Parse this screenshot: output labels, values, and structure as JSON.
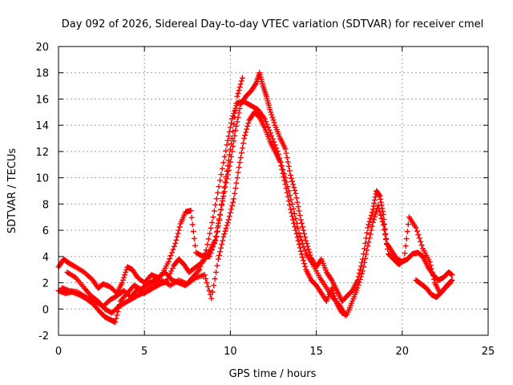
{
  "chart_data": {
    "type": "scatter",
    "title": "Day 092 of 2026, Sidereal Day-to-day VTEC variation (SDTVAR) for receiver cmel",
    "xlabel": "GPS time / hours",
    "ylabel": "SDTVAR / TECUs",
    "xlim": [
      0,
      25
    ],
    "ylim": [
      -2,
      20
    ],
    "x_ticks": [
      0,
      5,
      10,
      15,
      20,
      25
    ],
    "y_ticks": [
      -2,
      0,
      2,
      4,
      6,
      8,
      10,
      12,
      14,
      16,
      18,
      20
    ],
    "grid": true,
    "marker": "+",
    "series_color": "#ff0000",
    "series": [
      {
        "name": "sdtvar-track-a",
        "points": [
          [
            0.0,
            3.2
          ],
          [
            0.3,
            3.8
          ],
          [
            0.6,
            3.5
          ],
          [
            1.0,
            3.2
          ],
          [
            1.5,
            2.8
          ],
          [
            2.0,
            2.2
          ],
          [
            2.3,
            1.6
          ],
          [
            2.6,
            1.9
          ],
          [
            3.0,
            1.7
          ],
          [
            3.4,
            1.2
          ],
          [
            3.7,
            2.0
          ],
          [
            4.0,
            3.2
          ],
          [
            4.3,
            3.0
          ],
          [
            4.6,
            2.4
          ],
          [
            5.0,
            2.0
          ],
          [
            5.4,
            2.6
          ],
          [
            5.8,
            2.4
          ],
          [
            6.2,
            2.8
          ],
          [
            6.6,
            2.2
          ],
          [
            7.0,
            2.0
          ],
          [
            7.4,
            1.8
          ],
          [
            7.8,
            2.4
          ],
          [
            8.2,
            3.0
          ],
          [
            8.6,
            4.5
          ],
          [
            9.0,
            7.0
          ],
          [
            9.4,
            9.8
          ],
          [
            9.8,
            12.5
          ],
          [
            10.1,
            14.5
          ],
          [
            10.4,
            15.7
          ],
          [
            10.8,
            15.8
          ],
          [
            11.2,
            15.5
          ],
          [
            11.6,
            15.2
          ],
          [
            12.0,
            14.5
          ],
          [
            12.4,
            13.2
          ],
          [
            12.8,
            11.8
          ],
          [
            13.2,
            10.0
          ],
          [
            13.6,
            8.0
          ],
          [
            14.0,
            5.8
          ],
          [
            14.4,
            4.2
          ],
          [
            14.8,
            3.4
          ],
          [
            15.2,
            2.4
          ],
          [
            15.6,
            1.6
          ],
          [
            16.0,
            0.8
          ],
          [
            16.4,
            0.2
          ],
          [
            16.7,
            -0.5
          ]
        ]
      },
      {
        "name": "sdtvar-track-b",
        "points": [
          [
            0.0,
            1.4
          ],
          [
            0.4,
            1.2
          ],
          [
            0.8,
            1.3
          ],
          [
            1.2,
            1.1
          ],
          [
            1.6,
            0.8
          ],
          [
            2.0,
            0.4
          ],
          [
            2.4,
            -0.2
          ],
          [
            2.7,
            -0.6
          ],
          [
            3.0,
            -0.8
          ],
          [
            3.3,
            -1.0
          ],
          [
            3.6,
            0.6
          ],
          [
            4.0,
            1.2
          ],
          [
            4.4,
            1.8
          ],
          [
            4.8,
            1.5
          ],
          [
            5.2,
            1.9
          ],
          [
            5.6,
            2.2
          ],
          [
            6.0,
            2.6
          ],
          [
            6.4,
            3.6
          ],
          [
            6.8,
            5.0
          ],
          [
            7.1,
            6.5
          ],
          [
            7.4,
            7.4
          ],
          [
            7.7,
            7.5
          ],
          [
            8.0,
            4.3
          ],
          [
            8.4,
            4.0
          ],
          [
            8.8,
            4.0
          ],
          [
            9.2,
            5.5
          ],
          [
            9.5,
            8.0
          ],
          [
            9.8,
            10.5
          ],
          [
            10.1,
            13.0
          ],
          [
            10.4,
            16.2
          ],
          [
            10.7,
            17.6
          ]
        ]
      },
      {
        "name": "sdtvar-track-c",
        "points": [
          [
            0.5,
            2.8
          ],
          [
            1.0,
            2.4
          ],
          [
            1.5,
            1.6
          ],
          [
            1.9,
            1.0
          ],
          [
            2.3,
            0.6
          ],
          [
            2.7,
            0.0
          ],
          [
            3.1,
            -0.3
          ],
          [
            3.5,
            0.2
          ],
          [
            3.9,
            0.5
          ],
          [
            4.3,
            0.8
          ],
          [
            4.7,
            1.1
          ],
          [
            5.1,
            1.3
          ],
          [
            5.5,
            1.6
          ],
          [
            5.9,
            1.9
          ],
          [
            6.3,
            2.1
          ],
          [
            6.7,
            3.3
          ],
          [
            7.0,
            3.8
          ],
          [
            7.3,
            3.4
          ],
          [
            7.6,
            2.8
          ],
          [
            8.0,
            3.2
          ],
          [
            8.4,
            3.6
          ],
          [
            8.8,
            4.4
          ],
          [
            9.1,
            5.2
          ],
          [
            9.4,
            7.2
          ],
          [
            9.7,
            9.3
          ],
          [
            10.0,
            11.2
          ],
          [
            10.3,
            13.6
          ],
          [
            10.6,
            15.6
          ],
          [
            10.9,
            16.2
          ],
          [
            11.2,
            16.6
          ],
          [
            11.5,
            17.2
          ],
          [
            11.7,
            18.0
          ],
          [
            11.9,
            17.0
          ],
          [
            12.1,
            16.2
          ],
          [
            12.3,
            15.2
          ],
          [
            12.6,
            14.0
          ],
          [
            12.9,
            13.0
          ],
          [
            13.2,
            12.2
          ],
          [
            13.5,
            10.2
          ],
          [
            13.8,
            8.8
          ],
          [
            14.1,
            6.8
          ],
          [
            14.4,
            5.2
          ],
          [
            14.7,
            3.9
          ],
          [
            15.0,
            3.2
          ],
          [
            15.3,
            3.8
          ],
          [
            15.6,
            2.8
          ],
          [
            15.9,
            2.2
          ],
          [
            16.2,
            1.4
          ],
          [
            16.5,
            0.6
          ],
          [
            16.8,
            1.0
          ],
          [
            17.1,
            1.4
          ],
          [
            17.4,
            2.2
          ],
          [
            17.7,
            3.8
          ],
          [
            18.0,
            6.2
          ],
          [
            18.3,
            7.6
          ],
          [
            18.5,
            9.0
          ],
          [
            18.7,
            8.6
          ],
          [
            18.9,
            7.2
          ],
          [
            19.1,
            5.0
          ],
          [
            19.4,
            4.4
          ],
          [
            19.7,
            3.8
          ],
          [
            20.0,
            3.6
          ],
          [
            20.3,
            3.8
          ],
          [
            20.6,
            4.2
          ],
          [
            20.9,
            4.3
          ],
          [
            21.2,
            4.0
          ],
          [
            21.5,
            3.2
          ],
          [
            21.8,
            2.6
          ],
          [
            22.1,
            2.2
          ],
          [
            22.4,
            2.4
          ],
          [
            22.7,
            2.8
          ],
          [
            22.9,
            2.6
          ]
        ]
      },
      {
        "name": "sdtvar-track-d",
        "points": [
          [
            0.2,
            1.6
          ],
          [
            0.6,
            1.4
          ],
          [
            1.1,
            1.3
          ],
          [
            1.6,
            0.9
          ],
          [
            2.1,
            0.6
          ],
          [
            2.6,
            0.2
          ],
          [
            3.0,
            0.7
          ],
          [
            3.4,
            1.0
          ],
          [
            3.8,
            1.4
          ],
          [
            4.2,
            0.9
          ],
          [
            4.6,
            1.5
          ],
          [
            5.0,
            1.2
          ],
          [
            5.5,
            2.0
          ],
          [
            6.0,
            2.2
          ],
          [
            6.5,
            1.8
          ],
          [
            7.0,
            2.2
          ],
          [
            7.5,
            1.9
          ],
          [
            8.0,
            2.4
          ],
          [
            8.5,
            2.6
          ],
          [
            8.9,
            0.8
          ],
          [
            9.3,
            3.8
          ],
          [
            9.6,
            5.5
          ],
          [
            9.9,
            6.8
          ],
          [
            10.2,
            8.4
          ],
          [
            10.5,
            10.8
          ],
          [
            10.8,
            13.0
          ],
          [
            11.1,
            14.4
          ],
          [
            11.4,
            15.0
          ],
          [
            11.7,
            14.6
          ],
          [
            12.0,
            13.8
          ],
          [
            12.3,
            12.8
          ],
          [
            12.6,
            12.0
          ],
          [
            12.9,
            11.2
          ],
          [
            13.2,
            9.5
          ],
          [
            13.5,
            7.6
          ],
          [
            13.8,
            6.0
          ],
          [
            14.1,
            4.4
          ],
          [
            14.4,
            3.0
          ],
          [
            14.7,
            2.2
          ],
          [
            15.0,
            1.8
          ],
          [
            15.3,
            1.2
          ],
          [
            15.6,
            0.6
          ],
          [
            15.9,
            1.6
          ],
          [
            16.2,
            0.4
          ],
          [
            16.5,
            -0.3
          ],
          [
            16.8,
            -0.4
          ],
          [
            17.1,
            0.6
          ],
          [
            17.4,
            1.6
          ],
          [
            17.7,
            2.9
          ],
          [
            18.0,
            4.8
          ],
          [
            18.3,
            6.6
          ],
          [
            18.6,
            7.9
          ],
          [
            18.9,
            6.4
          ],
          [
            19.2,
            4.2
          ],
          [
            19.5,
            3.8
          ],
          [
            19.8,
            3.4
          ],
          [
            20.1,
            3.7
          ],
          [
            20.4,
            7.0
          ],
          [
            20.8,
            6.2
          ],
          [
            21.2,
            4.6
          ],
          [
            21.6,
            3.6
          ],
          [
            21.9,
            2.0
          ],
          [
            22.2,
            1.2
          ],
          [
            22.5,
            1.6
          ],
          [
            22.8,
            2.0
          ]
        ]
      },
      {
        "name": "sdtvar-track-e",
        "points": [
          [
            20.8,
            2.2
          ],
          [
            21.1,
            1.9
          ],
          [
            21.4,
            1.6
          ],
          [
            21.7,
            1.1
          ],
          [
            22.0,
            0.9
          ],
          [
            22.3,
            1.3
          ],
          [
            22.6,
            1.8
          ],
          [
            22.9,
            2.2
          ]
        ]
      }
    ]
  }
}
